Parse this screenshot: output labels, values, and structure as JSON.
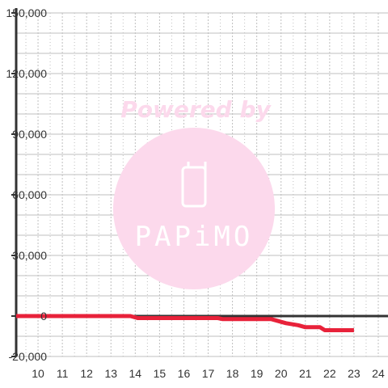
{
  "chart_data": {
    "type": "line",
    "title": "",
    "xlabel": "",
    "ylabel": "",
    "xlim": [
      9.1,
      24.4
    ],
    "ylim": [
      -20000,
      150000
    ],
    "x_ticks": [
      10,
      11,
      12,
      13,
      14,
      15,
      16,
      17,
      18,
      19,
      20,
      21,
      22,
      23,
      24
    ],
    "y_ticks": [
      150000,
      120000,
      90000,
      60000,
      30000,
      0,
      -20000
    ],
    "y_tick_labels": [
      "150,000",
      "120,000",
      "90,000",
      "60,000",
      "30,000",
      "0",
      "-20,000"
    ],
    "grid": true,
    "legend": "none",
    "series": [
      {
        "color": "#e8223a",
        "x": [
          9.1,
          13.8,
          14.1,
          17.4,
          17.6,
          19.6,
          19.9,
          20.2,
          20.7,
          21.0,
          21.6,
          21.8,
          22.1,
          23.0
        ],
        "y": [
          0,
          0,
          -1000,
          -1000,
          -1500,
          -1500,
          -2500,
          -3500,
          -4500,
          -5500,
          -5500,
          -7000,
          -7000,
          -7000
        ]
      }
    ],
    "zero_line_color": "#333333",
    "axis_color": "#333333",
    "grid_color": "#bfbfbf"
  },
  "watermark": {
    "powered_text": "Powered by",
    "brand_text": "PAPiMO",
    "color": "#fcd9ec",
    "text_color": "#ffffff"
  }
}
